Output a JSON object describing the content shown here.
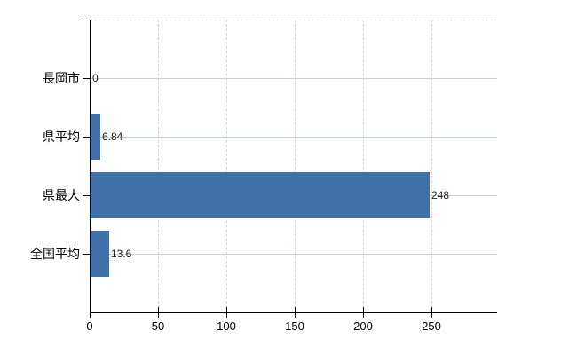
{
  "chart_data": {
    "type": "bar",
    "orientation": "horizontal",
    "title": "",
    "xlabel": "",
    "ylabel": "",
    "categories": [
      "長岡市",
      "県平均",
      "県最大",
      "全国平均"
    ],
    "values": [
      0,
      6.84,
      248,
      13.6
    ],
    "value_labels": [
      "0",
      "6.84",
      "248",
      "13.6"
    ],
    "x_ticks": [
      0,
      50,
      100,
      150,
      200,
      250
    ],
    "x_tick_labels": [
      "0",
      "50",
      "100",
      "150",
      "200",
      "250"
    ],
    "xlim": [
      0,
      298
    ],
    "grid": true,
    "legend": false,
    "colors": {
      "bar": "#4070A8",
      "axis": "#000000",
      "h_gridline": "#cdd3cd",
      "v_gridline": "#d8d3d8",
      "category_text": "#000000",
      "value_text": "#222222",
      "background": "#ffffff"
    }
  }
}
